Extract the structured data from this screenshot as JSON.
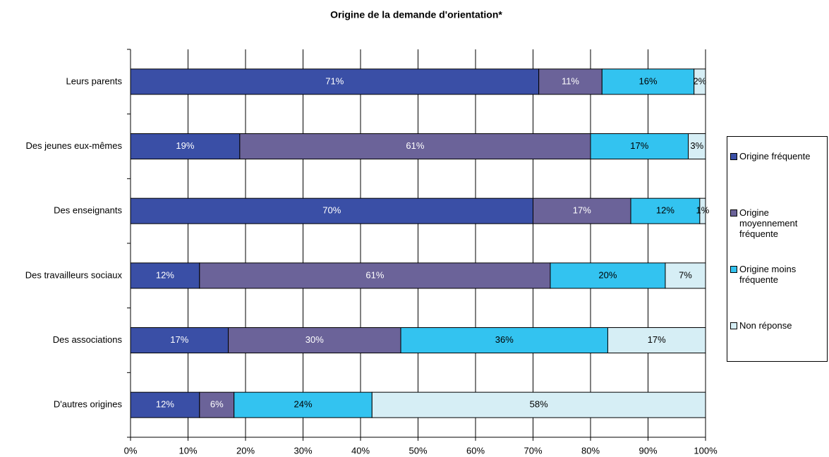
{
  "chart_data": {
    "type": "stacked_barh",
    "title": "Origine de la demande d'orientation*",
    "categories": [
      "Leurs parents",
      "Des jeunes eux-mêmes",
      "Des enseignants",
      "Des travailleurs sociaux",
      "Des associations",
      "D'autres origines"
    ],
    "series": [
      {
        "name": "Origine fréquente",
        "color": "#3a4fa6",
        "values": [
          71,
          19,
          70,
          12,
          17,
          12
        ],
        "value_labels": [
          "71%",
          "19%",
          "70%",
          "12%",
          "17%",
          "12%"
        ]
      },
      {
        "name": "Origine moyennement fréquente",
        "color": "#6b6399",
        "values": [
          11,
          61,
          17,
          61,
          30,
          6
        ],
        "value_labels": [
          "11%",
          "61%",
          "17%",
          "61%",
          "30%",
          "6%"
        ]
      },
      {
        "name": "Origine moins fréquente",
        "color": "#33c3f0",
        "values": [
          16,
          17,
          12,
          20,
          36,
          24
        ],
        "value_labels": [
          "16%",
          "17%",
          "12%",
          "20%",
          "36%",
          "24%"
        ]
      },
      {
        "name": "Non réponse",
        "color": "#d6eef5",
        "values": [
          2,
          3,
          1,
          7,
          17,
          58
        ],
        "value_labels": [
          "2%",
          "3%",
          "1%",
          "7%",
          "17%",
          "58%"
        ]
      }
    ],
    "xlim": [
      0,
      100
    ],
    "xticks": [
      {
        "value": 0,
        "label": "0%"
      },
      {
        "value": 10,
        "label": "10%"
      },
      {
        "value": 20,
        "label": "20%"
      },
      {
        "value": 30,
        "label": "30%"
      },
      {
        "value": 40,
        "label": "40%"
      },
      {
        "value": 50,
        "label": "50%"
      },
      {
        "value": 60,
        "label": "60%"
      },
      {
        "value": 70,
        "label": "70%"
      },
      {
        "value": 80,
        "label": "80%"
      },
      {
        "value": 90,
        "label": "90%"
      },
      {
        "value": 100,
        "label": "100%"
      }
    ],
    "grid": true,
    "legend": "right"
  }
}
